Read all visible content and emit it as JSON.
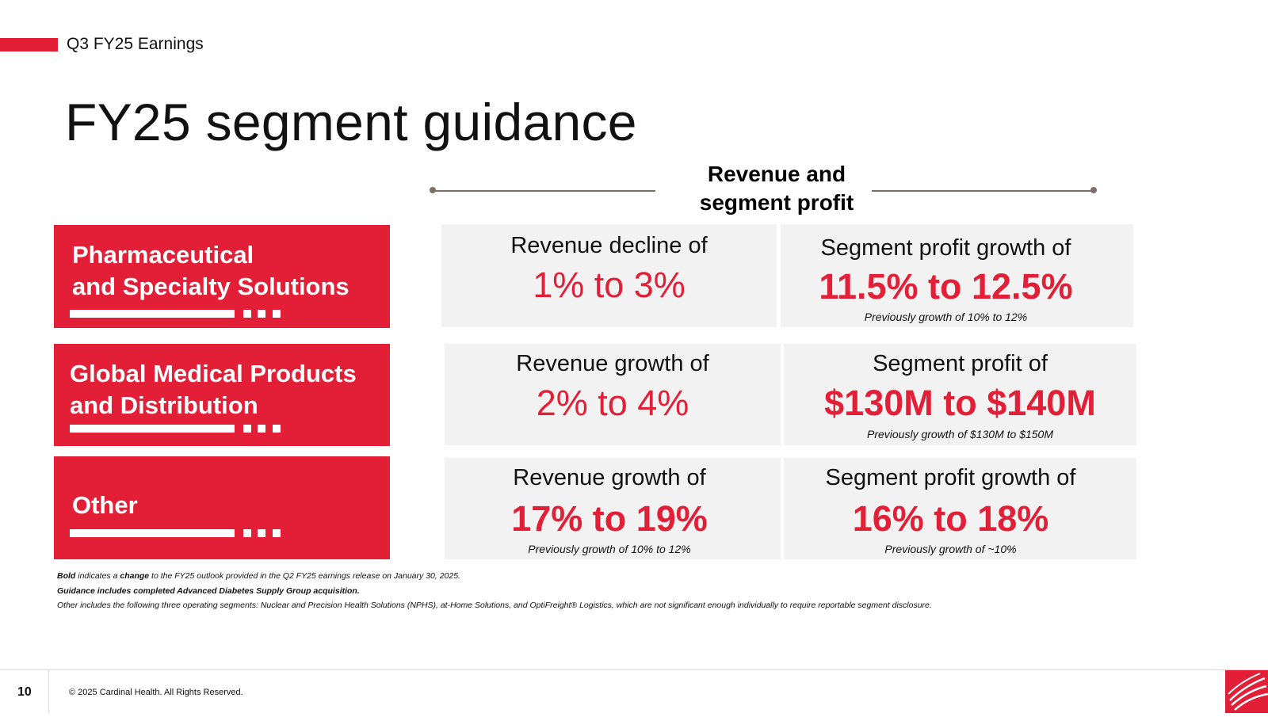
{
  "header": {
    "section_label": "Q3 FY25 Earnings",
    "title": "FY25 segment guidance"
  },
  "column_header": "Revenue and\nsegment profit",
  "segments": [
    {
      "name": "Pharmaceutical\nand Specialty Solutions",
      "revenue": {
        "label": "Revenue decline of",
        "value": "1% to 3%",
        "note": ""
      },
      "profit": {
        "label": "Segment profit growth of",
        "value": "11.5% to 12.5%",
        "note": "Previously growth of 10% to 12%"
      }
    },
    {
      "name": "Global Medical Products\nand Distribution",
      "revenue": {
        "label": "Revenue growth of",
        "value": "2% to 4%",
        "note": ""
      },
      "profit": {
        "label": "Segment profit of",
        "value": "$130M to $140M",
        "note": "Previously growth of $130M to $150M"
      }
    },
    {
      "name": "Other",
      "revenue": {
        "label": "Revenue growth of",
        "value": "17% to 19%",
        "note": "Previously growth of 10% to 12%"
      },
      "profit": {
        "label": "Segment profit growth of",
        "value": "16% to 18%",
        "note": "Previously growth of ~10%"
      }
    }
  ],
  "footnotes": {
    "line1": {
      "part1": "Bold",
      "part2": " indicates a ",
      "part3": "change",
      "part4": " to the FY25 outlook provided in the Q2 FY25 earnings release on January 30, 2025."
    },
    "line2": "Guidance includes completed Advanced Diabetes Supply Group acquisition.",
    "line3": "Other includes the following three operating segments: Nuclear and Precision Health Solutions (NPHS), at-Home Solutions, and OptiFreight® Logistics, which are not significant enough individually to require reportable segment disclosure."
  },
  "footer": {
    "page_number": "10",
    "copyright": "© 2025 Cardinal Health. All Rights Reserved.",
    "logo_icon": "cardinal-health-logo-icon"
  },
  "colors": {
    "brand_red": "#e21f36",
    "cell_gray": "#f2f2f2",
    "rule_gray": "#7a7068"
  }
}
